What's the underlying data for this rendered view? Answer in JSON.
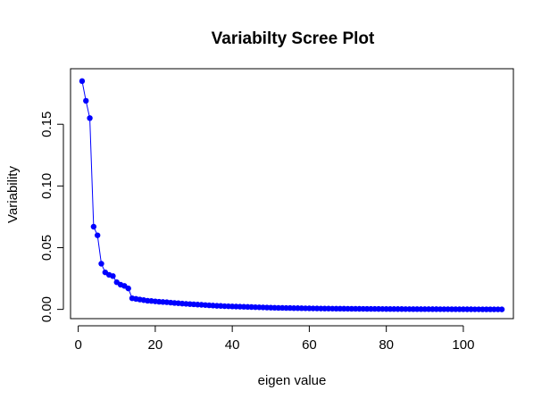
{
  "chart_data": {
    "type": "line",
    "title": "Variabilty Scree Plot",
    "xlabel": "eigen value",
    "ylabel": "Variability",
    "xlim": [
      -2,
      113
    ],
    "ylim": [
      -0.0075,
      0.195
    ],
    "xticks": [
      0,
      20,
      40,
      60,
      80,
      100
    ],
    "yticks": [
      0.0,
      0.05,
      0.1,
      0.15
    ],
    "xtick_labels": [
      "0",
      "20",
      "40",
      "60",
      "80",
      "100"
    ],
    "ytick_labels": [
      "0.00",
      "0.05",
      "0.10",
      "0.15"
    ],
    "grid": false,
    "line_color": "#0000ff",
    "point_color": "#0000ff",
    "series": [
      {
        "x": [
          1,
          2,
          3,
          4,
          5,
          6,
          7,
          8,
          9,
          10,
          11,
          12,
          13,
          14,
          15,
          16,
          17,
          18,
          19,
          20,
          21,
          22,
          23,
          24,
          25,
          26,
          27,
          28,
          29,
          30,
          31,
          32,
          33,
          34,
          35,
          36,
          37,
          38,
          39,
          40,
          41,
          42,
          43,
          44,
          45,
          46,
          47,
          48,
          49,
          50,
          51,
          52,
          53,
          54,
          55,
          56,
          57,
          58,
          59,
          60,
          61,
          62,
          63,
          64,
          65,
          66,
          67,
          68,
          69,
          70,
          71,
          72,
          73,
          74,
          75,
          76,
          77,
          78,
          79,
          80,
          81,
          82,
          83,
          84,
          85,
          86,
          87,
          88,
          89,
          90,
          91,
          92,
          93,
          94,
          95,
          96,
          97,
          98,
          99,
          100,
          101,
          102,
          103,
          104,
          105,
          106,
          107,
          108,
          109,
          110
        ],
        "values": [
          0.185,
          0.169,
          0.155,
          0.067,
          0.06,
          0.037,
          0.03,
          0.028,
          0.027,
          0.022,
          0.02,
          0.019,
          0.017,
          0.009,
          0.0085,
          0.008,
          0.0075,
          0.007,
          0.0068,
          0.0065,
          0.0062,
          0.006,
          0.0058,
          0.0055,
          0.0052,
          0.005,
          0.0047,
          0.0045,
          0.0043,
          0.0041,
          0.0039,
          0.0037,
          0.0035,
          0.0033,
          0.0031,
          0.0029,
          0.0028,
          0.0026,
          0.0025,
          0.0024,
          0.0023,
          0.0022,
          0.0021,
          0.002,
          0.0019,
          0.0018,
          0.0017,
          0.0016,
          0.0015,
          0.0014,
          0.0013,
          0.0012,
          0.0012,
          0.0011,
          0.0011,
          0.001,
          0.001,
          0.00095,
          0.0009,
          0.00085,
          0.0008,
          0.00075,
          0.0007,
          0.00068,
          0.00065,
          0.00062,
          0.0006,
          0.00057,
          0.00055,
          0.00052,
          0.0005,
          0.00048,
          0.00046,
          0.00044,
          0.00042,
          0.0004,
          0.00038,
          0.00036,
          0.00034,
          0.00032,
          0.0003,
          0.00029,
          0.00028,
          0.00027,
          0.00026,
          0.00025,
          0.00024,
          0.00023,
          0.00022,
          0.00021,
          0.0002,
          0.00019,
          0.00018,
          0.00017,
          0.00016,
          0.00015,
          0.00014,
          0.00013,
          0.00012,
          0.00011,
          0.0001,
          9e-05,
          8e-05,
          7e-05,
          6e-05,
          5e-05,
          4e-05,
          3e-05,
          2e-05,
          1e-05
        ]
      }
    ]
  }
}
